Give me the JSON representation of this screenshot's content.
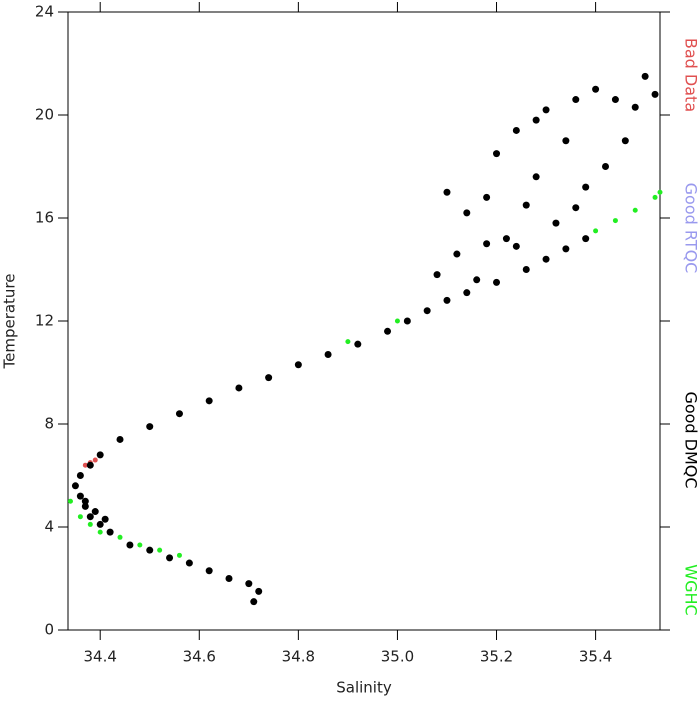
{
  "chart_data": {
    "type": "scatter",
    "xlabel": "Salinity",
    "ylabel": "Temperature",
    "xlim": [
      34.335,
      35.53
    ],
    "ylim": [
      0,
      24
    ],
    "xticks": [
      34.4,
      34.6,
      34.8,
      {
        "value": 35,
        "label": "35.0"
      },
      35.2,
      35.4
    ],
    "yticks": [
      0,
      4,
      8,
      12,
      16,
      20,
      24
    ],
    "series": [
      {
        "name": "Bad Data",
        "color": "#e05050",
        "x": [
          34.37,
          34.38,
          34.39
        ],
        "y": [
          6.4,
          6.5,
          6.6
        ]
      },
      {
        "name": "Good RTQC",
        "color": "#9999ee",
        "x": [],
        "y": []
      },
      {
        "name": "Good DMQC",
        "color": "#000000",
        "x": [
          34.71,
          34.72,
          34.7,
          34.66,
          34.62,
          34.58,
          34.54,
          34.5,
          34.46,
          34.42,
          34.4,
          34.38,
          34.37,
          34.36,
          34.35,
          34.36,
          34.38,
          34.4,
          34.44,
          34.5,
          34.56,
          34.62,
          34.68,
          34.74,
          34.8,
          34.86,
          34.92,
          34.98,
          35.02,
          35.06,
          35.1,
          35.14,
          35.2,
          35.26,
          35.3,
          35.34,
          35.38,
          35.1,
          35.14,
          35.18,
          35.2,
          35.24,
          35.28,
          35.3,
          35.34,
          35.36,
          35.4,
          35.44,
          35.48,
          35.5,
          35.52,
          35.42,
          35.26,
          35.22,
          35.32,
          35.08,
          35.12,
          35.16,
          35.38,
          35.46,
          35.36,
          35.28,
          35.18,
          35.24,
          34.41,
          34.39,
          34.37
        ],
        "y": [
          1.1,
          1.5,
          1.8,
          2.0,
          2.3,
          2.6,
          2.8,
          3.1,
          3.3,
          3.8,
          4.1,
          4.4,
          4.8,
          5.2,
          5.6,
          6.0,
          6.4,
          6.8,
          7.4,
          7.9,
          8.4,
          8.9,
          9.4,
          9.8,
          10.3,
          10.7,
          11.1,
          11.6,
          12.0,
          12.4,
          12.8,
          13.1,
          13.5,
          14.0,
          14.4,
          14.8,
          15.2,
          17.0,
          16.2,
          15.0,
          18.5,
          19.4,
          17.6,
          20.2,
          19.0,
          16.4,
          21.0,
          20.6,
          20.3,
          21.5,
          20.8,
          18.0,
          16.5,
          15.2,
          15.8,
          13.8,
          14.6,
          13.6,
          17.2,
          19.0,
          20.6,
          19.8,
          16.8,
          14.9,
          4.3,
          4.6,
          5.0
        ]
      },
      {
        "name": "WGHC",
        "color": "#22ee22",
        "x": [
          34.34,
          34.36,
          34.38,
          34.4,
          34.44,
          34.48,
          34.52,
          34.56,
          34.9,
          35.0,
          35.4,
          35.44,
          35.48,
          35.52,
          35.53
        ],
        "y": [
          5.0,
          4.4,
          4.1,
          3.8,
          3.6,
          3.3,
          3.1,
          2.9,
          11.2,
          12.0,
          15.5,
          15.9,
          16.3,
          16.8,
          17.0
        ]
      }
    ]
  }
}
